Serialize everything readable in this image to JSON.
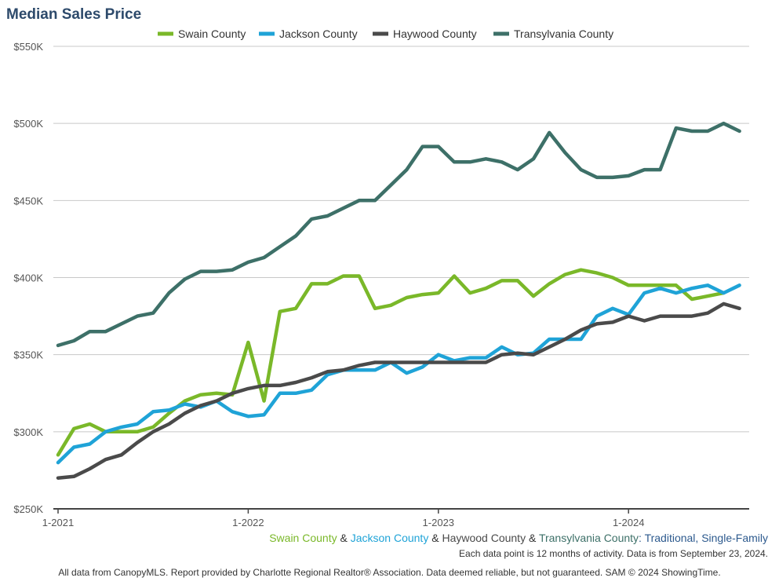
{
  "chart_data": {
    "type": "line",
    "title": "Median Sales Price",
    "xlabel": "",
    "ylabel": "",
    "x_tick_labels": [
      "1-2021",
      "1-2022",
      "1-2023",
      "1-2024"
    ],
    "y_tick_labels": [
      "$250K",
      "$300K",
      "$350K",
      "$400K",
      "$450K",
      "$500K",
      "$550K"
    ],
    "ylim": [
      250000,
      550000
    ],
    "xlim": [
      "2021-01",
      "2024-08"
    ],
    "grid": "horizontal",
    "legend_position": "top-center",
    "months": [
      "2021-01",
      "2021-02",
      "2021-03",
      "2021-04",
      "2021-05",
      "2021-06",
      "2021-07",
      "2021-08",
      "2021-09",
      "2021-10",
      "2021-11",
      "2021-12",
      "2022-01",
      "2022-02",
      "2022-03",
      "2022-04",
      "2022-05",
      "2022-06",
      "2022-07",
      "2022-08",
      "2022-09",
      "2022-10",
      "2022-11",
      "2022-12",
      "2023-01",
      "2023-02",
      "2023-03",
      "2023-04",
      "2023-05",
      "2023-06",
      "2023-07",
      "2023-08",
      "2023-09",
      "2023-10",
      "2023-11",
      "2023-12",
      "2024-01",
      "2024-02",
      "2024-03",
      "2024-04",
      "2024-05",
      "2024-06",
      "2024-07",
      "2024-08"
    ],
    "series": [
      {
        "name": "Swain County",
        "color": "#7ab829",
        "values": [
          285000,
          302000,
          305000,
          300000,
          300000,
          300000,
          303000,
          312000,
          320000,
          324000,
          325000,
          324000,
          358000,
          320000,
          378000,
          380000,
          396000,
          396000,
          401000,
          401000,
          380000,
          382000,
          387000,
          389000,
          390000,
          401000,
          390000,
          393000,
          398000,
          398000,
          388000,
          396000,
          402000,
          405000,
          403000,
          400000,
          395000,
          395000,
          395000,
          395000,
          386000,
          388000,
          390000,
          null
        ]
      },
      {
        "name": "Jackson County",
        "color": "#1fa3d7",
        "values": [
          280000,
          290000,
          292000,
          300000,
          303000,
          305000,
          313000,
          314000,
          318000,
          316000,
          320000,
          313000,
          310000,
          311000,
          325000,
          325000,
          327000,
          337000,
          340000,
          340000,
          340000,
          345000,
          338000,
          342000,
          350000,
          346000,
          348000,
          348000,
          355000,
          350000,
          351000,
          360000,
          360000,
          360000,
          375000,
          380000,
          376000,
          390000,
          393000,
          390000,
          393000,
          395000,
          390000,
          395000
        ]
      },
      {
        "name": "Haywood County",
        "color": "#4a4a4a",
        "values": [
          270000,
          271000,
          276000,
          282000,
          285000,
          293000,
          300000,
          305000,
          312000,
          317000,
          320000,
          325000,
          328000,
          330000,
          330000,
          332000,
          335000,
          339000,
          340000,
          343000,
          345000,
          345000,
          345000,
          345000,
          345000,
          345000,
          345000,
          345000,
          350000,
          351000,
          350000,
          355000,
          360000,
          366000,
          370000,
          371000,
          375000,
          372000,
          375000,
          375000,
          375000,
          377000,
          383000,
          380000
        ]
      },
      {
        "name": "Transylvania County",
        "color": "#3d7068",
        "values": [
          356000,
          359000,
          365000,
          365000,
          370000,
          375000,
          377000,
          390000,
          399000,
          404000,
          404000,
          405000,
          410000,
          413000,
          420000,
          427000,
          438000,
          440000,
          445000,
          450000,
          450000,
          460000,
          470000,
          485000,
          485000,
          475000,
          475000,
          477000,
          475000,
          470000,
          477000,
          494000,
          481000,
          470000,
          465000,
          465000,
          466000,
          470000,
          470000,
          497000,
          495000,
          495000,
          500000,
          495000
        ]
      }
    ]
  },
  "footer": {
    "subtitle_parts": [
      "Swain County",
      " & ",
      "Jackson County",
      " & ",
      "Haywood County",
      " & ",
      "Transylvania County",
      ": Traditional, Single-Family"
    ],
    "note": "Each data point is 12 months of activity. Data is from September 23, 2024.",
    "source": "All data from CanopyMLS. Report provided by Charlotte Regional Realtor® Association. Data deemed reliable, but not guaranteed. SAM © 2024 ShowingTime."
  }
}
